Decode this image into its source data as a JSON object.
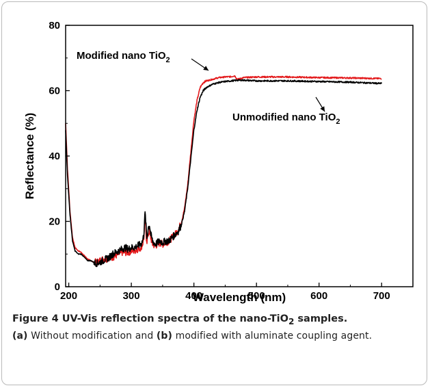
{
  "chart_data": {
    "type": "line",
    "xlabel": "Wavelength (nm)",
    "ylabel": "Reflectance (%)",
    "xlim": [
      195,
      750
    ],
    "ylim": [
      0,
      80
    ],
    "xticks": [
      200,
      300,
      400,
      500,
      600,
      700
    ],
    "yticks": [
      0,
      20,
      40,
      60,
      80
    ],
    "grid": false,
    "series": [
      {
        "name": "Unmodified nano TiO2",
        "color": "#000000",
        "points": [
          [
            195,
            48
          ],
          [
            198,
            34
          ],
          [
            202,
            22
          ],
          [
            206,
            14
          ],
          [
            210,
            11
          ],
          [
            215,
            10
          ],
          [
            220,
            10
          ],
          [
            225,
            9
          ],
          [
            230,
            8
          ],
          [
            235,
            8
          ],
          [
            240,
            7.5
          ],
          [
            245,
            7.2
          ],
          [
            250,
            7.5
          ],
          [
            255,
            8
          ],
          [
            260,
            8.5
          ],
          [
            265,
            9
          ],
          [
            270,
            10
          ],
          [
            275,
            10.5
          ],
          [
            280,
            11
          ],
          [
            285,
            11.5
          ],
          [
            290,
            12
          ],
          [
            295,
            11.5
          ],
          [
            300,
            12
          ],
          [
            305,
            12
          ],
          [
            310,
            12.5
          ],
          [
            315,
            13
          ],
          [
            318,
            14
          ],
          [
            320,
            16
          ],
          [
            321,
            20
          ],
          [
            322,
            22.5
          ],
          [
            323,
            20
          ],
          [
            324,
            17
          ],
          [
            325,
            15
          ],
          [
            327,
            18
          ],
          [
            329,
            19
          ],
          [
            331,
            16
          ],
          [
            334,
            14
          ],
          [
            338,
            13
          ],
          [
            342,
            13.5
          ],
          [
            346,
            14
          ],
          [
            350,
            13.5
          ],
          [
            355,
            14
          ],
          [
            360,
            14
          ],
          [
            365,
            15
          ],
          [
            370,
            16
          ],
          [
            375,
            17
          ],
          [
            380,
            19
          ],
          [
            385,
            23
          ],
          [
            390,
            30
          ],
          [
            395,
            39
          ],
          [
            400,
            48
          ],
          [
            405,
            54
          ],
          [
            410,
            58
          ],
          [
            415,
            60
          ],
          [
            420,
            61
          ],
          [
            430,
            62
          ],
          [
            440,
            62.5
          ],
          [
            450,
            62.8
          ],
          [
            460,
            63
          ],
          [
            470,
            63.2
          ],
          [
            480,
            63.2
          ],
          [
            500,
            63
          ],
          [
            550,
            63
          ],
          [
            600,
            62.8
          ],
          [
            650,
            62.6
          ],
          [
            700,
            62.2
          ]
        ]
      },
      {
        "name": "Modified nano TiO2",
        "color": "#e31a1c",
        "points": [
          [
            195,
            50
          ],
          [
            198,
            36
          ],
          [
            202,
            23
          ],
          [
            206,
            15
          ],
          [
            210,
            12
          ],
          [
            215,
            11
          ],
          [
            220,
            10.5
          ],
          [
            225,
            9.5
          ],
          [
            230,
            8.5
          ],
          [
            235,
            8
          ],
          [
            240,
            7.5
          ],
          [
            245,
            7.5
          ],
          [
            250,
            8
          ],
          [
            255,
            8.5
          ],
          [
            260,
            8.5
          ],
          [
            265,
            9
          ],
          [
            270,
            9
          ],
          [
            275,
            9.5
          ],
          [
            280,
            10
          ],
          [
            285,
            10.5
          ],
          [
            290,
            10.5
          ],
          [
            295,
            10.5
          ],
          [
            300,
            11
          ],
          [
            305,
            11
          ],
          [
            310,
            11.5
          ],
          [
            315,
            12
          ],
          [
            318,
            13
          ],
          [
            320,
            15
          ],
          [
            321,
            18
          ],
          [
            322,
            20
          ],
          [
            323,
            18
          ],
          [
            324,
            15
          ],
          [
            325,
            14
          ],
          [
            327,
            16
          ],
          [
            329,
            17
          ],
          [
            331,
            15
          ],
          [
            334,
            13
          ],
          [
            338,
            12.5
          ],
          [
            342,
            13
          ],
          [
            346,
            13.5
          ],
          [
            350,
            13
          ],
          [
            355,
            13.5
          ],
          [
            360,
            14
          ],
          [
            365,
            15
          ],
          [
            370,
            16
          ],
          [
            375,
            17.5
          ],
          [
            380,
            19.5
          ],
          [
            385,
            24
          ],
          [
            390,
            31
          ],
          [
            395,
            41
          ],
          [
            400,
            51
          ],
          [
            405,
            57
          ],
          [
            410,
            61
          ],
          [
            415,
            62.5
          ],
          [
            420,
            63
          ],
          [
            430,
            63.5
          ],
          [
            440,
            64
          ],
          [
            450,
            64.2
          ],
          [
            460,
            64.3
          ],
          [
            465,
            64.6
          ],
          [
            468,
            63.8
          ],
          [
            470,
            63.5
          ],
          [
            480,
            64
          ],
          [
            500,
            64.2
          ],
          [
            550,
            64.2
          ],
          [
            600,
            64
          ],
          [
            650,
            63.9
          ],
          [
            700,
            63.7
          ]
        ]
      }
    ],
    "annotations": {
      "modified": {
        "text": "Modified nano TiO",
        "sub": "2"
      },
      "unmodified": {
        "text": "Unmodified nano TiO",
        "sub": "2"
      }
    }
  },
  "caption": {
    "title_pre": "Figure 4 UV-Vis reflection spectra of the nano-TiO",
    "title_sub": "2",
    "title_post": " samples.",
    "a_label": "(a)",
    "a_text": " Without modification and ",
    "b_label": "(b)",
    "b_text": " modified with aluminate coupling agent."
  }
}
